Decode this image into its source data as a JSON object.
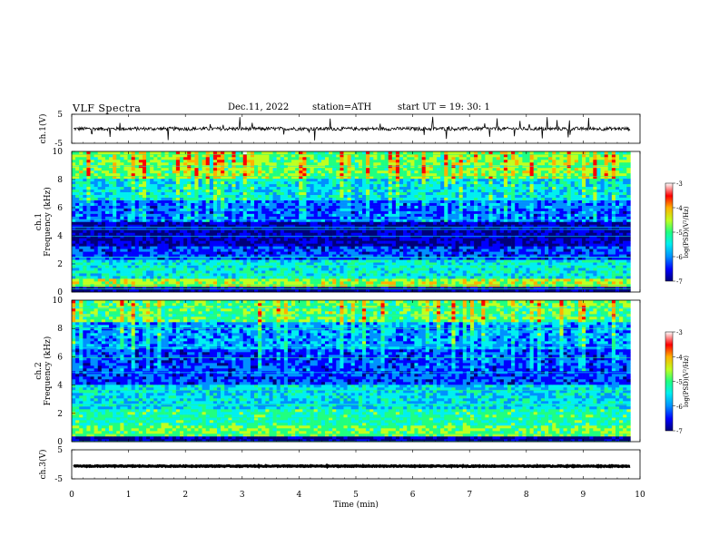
{
  "header": {
    "title": "VLF  Spectra",
    "date": "Dec.11, 2022",
    "station": "station=ATH",
    "start": "start  UT  =    19: 30: 1"
  },
  "chart_data": [
    {
      "type": "line",
      "panel": "waveform",
      "ylabel": "ch.1(V)",
      "ylim": [
        -5,
        5
      ],
      "yticks": [
        "5",
        "-5"
      ],
      "xlim": [
        0,
        10
      ],
      "baseline": 0,
      "noise_amplitude": 0.6,
      "spike_amplitude": 2.5
    },
    {
      "type": "heatmap",
      "panel": "spectrogram",
      "ylabel": "ch.1\nFrequency  (kHz)",
      "ylim": [
        0,
        10
      ],
      "yticks": [
        "0",
        "2",
        "4",
        "6",
        "8",
        "10"
      ],
      "xlim": [
        0,
        9.83
      ],
      "colorbar": {
        "label": "log(PSD)(V²/Hz)",
        "ticks": [
          "-3",
          "-4",
          "-5",
          "-6",
          "-7"
        ],
        "range": [
          -7,
          -3
        ]
      },
      "bands": [
        {
          "f": [
            0,
            0.3
          ],
          "v": -7.0
        },
        {
          "f": [
            0.3,
            1.0
          ],
          "v": -4.6
        },
        {
          "f": [
            1.0,
            2.4
          ],
          "v": -5.4
        },
        {
          "f": [
            2.4,
            3.3
          ],
          "v": -6.3
        },
        {
          "f": [
            3.3,
            5.0
          ],
          "v": -6.8
        },
        {
          "f": [
            5.0,
            6.6
          ],
          "v": -6.2
        },
        {
          "f": [
            6.6,
            8.0
          ],
          "v": -5.6
        },
        {
          "f": [
            8.0,
            10.0
          ],
          "v": -4.8
        }
      ]
    },
    {
      "type": "heatmap",
      "panel": "spectrogram",
      "ylabel": "ch.2\nFrequency  (kHz)",
      "ylim": [
        0,
        10
      ],
      "yticks": [
        "0",
        "2",
        "4",
        "6",
        "8",
        "10"
      ],
      "xlim": [
        0,
        9.83
      ],
      "colorbar": {
        "label": "log(PSD)(V²/Hz)",
        "ticks": [
          "-3",
          "-4",
          "-5",
          "-6",
          "-7"
        ],
        "range": [
          -7,
          -3
        ]
      },
      "bands": [
        {
          "f": [
            0,
            0.3
          ],
          "v": -7.0
        },
        {
          "f": [
            0.3,
            1.2
          ],
          "v": -4.8
        },
        {
          "f": [
            1.2,
            2.4
          ],
          "v": -5.2
        },
        {
          "f": [
            2.4,
            4.0
          ],
          "v": -5.6
        },
        {
          "f": [
            4.0,
            6.6
          ],
          "v": -6.3
        },
        {
          "f": [
            6.6,
            8.5
          ],
          "v": -5.9
        },
        {
          "f": [
            8.5,
            10.0
          ],
          "v": -4.9
        }
      ]
    },
    {
      "type": "line",
      "panel": "waveform",
      "ylabel": "ch.3(V)",
      "ylim": [
        -5,
        5
      ],
      "yticks": [
        "5",
        "-5"
      ],
      "xlim": [
        0,
        10
      ],
      "baseline": 0,
      "noise_amplitude": 0.15,
      "spike_amplitude": 0
    }
  ],
  "xaxis": {
    "label": "Time  (min)",
    "range": [
      0,
      10
    ],
    "ticks": [
      "0",
      "1",
      "2",
      "3",
      "4",
      "5",
      "6",
      "7",
      "8",
      "9",
      "10"
    ]
  },
  "colors": {
    "colormap": [
      "#00007a",
      "#0000ff",
      "#0090ff",
      "#00f0f0",
      "#20ff80",
      "#c0ff20",
      "#ffb000",
      "#ff0000",
      "#ffffff"
    ]
  }
}
